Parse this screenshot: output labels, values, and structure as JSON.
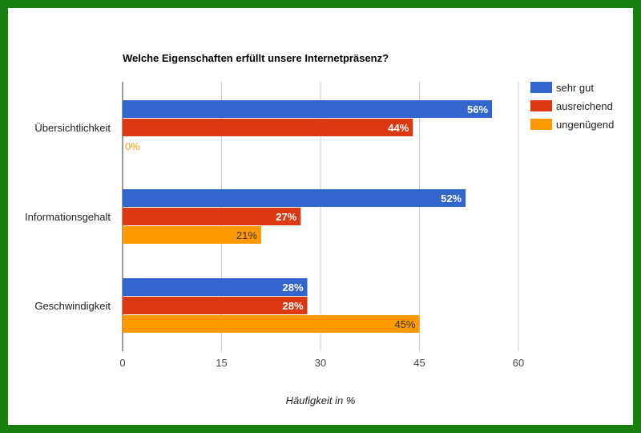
{
  "chart_data": {
    "type": "bar",
    "orientation": "horizontal",
    "title": "Welche Eigenschaften erfüllt unsere Internetpräsenz?",
    "xlabel": "Häufigkeit in %",
    "ylabel": "",
    "xlim": [
      0,
      60
    ],
    "xticks": [
      0,
      15,
      30,
      45,
      60
    ],
    "grid": true,
    "legend_position": "top-right",
    "categories": [
      "Übersichtlichkeit",
      "Informationsgehalt",
      "Geschwindigkeit"
    ],
    "series": [
      {
        "name": "sehr gut",
        "color": "#3366cc",
        "label_color": "#ffffff",
        "values": [
          56,
          52,
          28
        ],
        "labels": [
          "56%",
          "52%",
          "28%"
        ]
      },
      {
        "name": "ausreichend",
        "color": "#dc3912",
        "label_color": "#ffffff",
        "values": [
          44,
          27,
          28
        ],
        "labels": [
          "44%",
          "27%",
          "28%"
        ]
      },
      {
        "name": "ungenügend",
        "color": "#ff9900",
        "label_color": "#333333",
        "values": [
          0,
          21,
          45
        ],
        "labels": [
          "0%",
          "21%",
          "45%"
        ]
      }
    ]
  }
}
